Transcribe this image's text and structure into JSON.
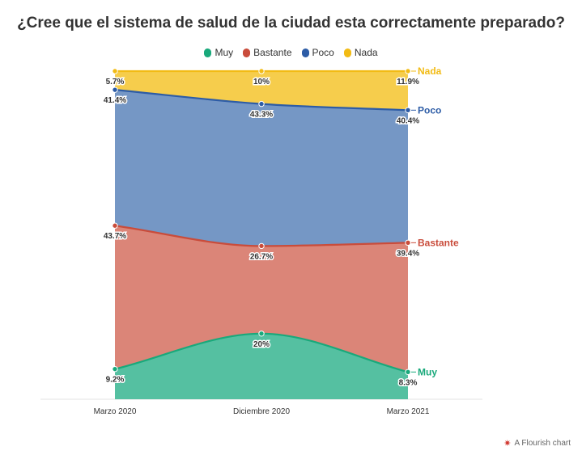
{
  "title": "¿Cree que el sistema de salud de la ciudad esta correctamente preparado?",
  "chart_data": {
    "type": "area",
    "stacked": true,
    "normalized": true,
    "x": [
      "Marzo 2020",
      "Diciembre 2020",
      "Marzo 2021"
    ],
    "series": [
      {
        "name": "Muy",
        "color": "#19a97b",
        "values": [
          9.2,
          20,
          8.3
        ],
        "labels": [
          "9.2%",
          "20%",
          "8.3%"
        ]
      },
      {
        "name": "Bastante",
        "color": "#c94c3b",
        "values": [
          43.7,
          26.7,
          39.4
        ],
        "labels": [
          "43.7%",
          "26.7%",
          "39.4%"
        ]
      },
      {
        "name": "Poco",
        "color": "#2d5ca6",
        "values": [
          41.4,
          43.3,
          40.4
        ],
        "labels": [
          "41.4%",
          "43.3%",
          "40.4%"
        ]
      },
      {
        "name": "Nada",
        "color": "#f2bb15",
        "values": [
          5.7,
          10,
          11.9
        ],
        "labels": [
          "5.7%",
          "10%",
          "11.9%"
        ]
      }
    ],
    "ylim": [
      0,
      100
    ],
    "legend_position": "top"
  },
  "credit": {
    "text": "A Flourish chart",
    "icon": "flourish-star-icon"
  }
}
